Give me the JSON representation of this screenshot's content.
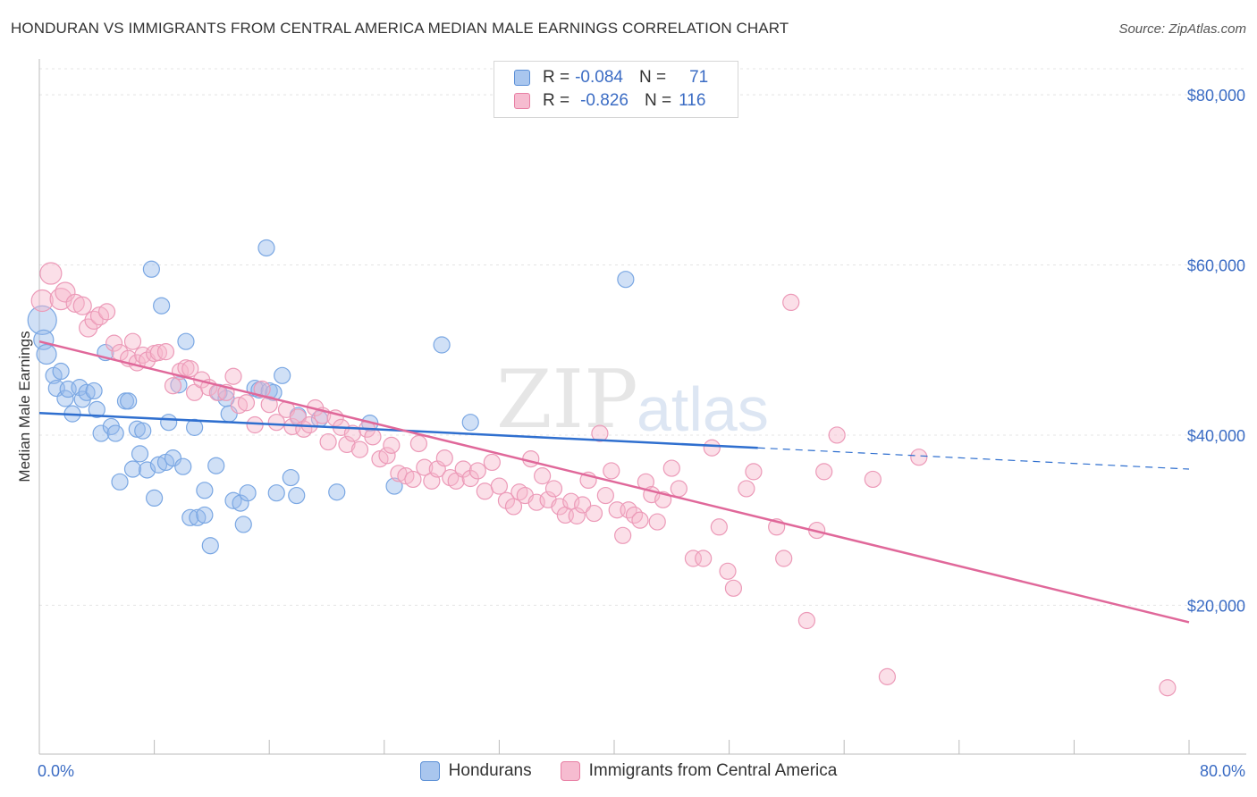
{
  "header": {
    "title": "HONDURAN VS IMMIGRANTS FROM CENTRAL AMERICA MEDIAN MALE EARNINGS CORRELATION CHART",
    "source_label": "Source: ZipAtlas.com"
  },
  "watermark": {
    "zip": "ZIP",
    "atlas": "atlas"
  },
  "legend": {
    "rows": [
      {
        "r_label": "R =",
        "r_value": "-0.084",
        "n_label": "N =",
        "n_value": "71",
        "color": "#a9c6ee",
        "border": "#5b8fd6"
      },
      {
        "r_label": "R =",
        "r_value": "-0.826",
        "n_label": "N =",
        "n_value": "116",
        "color": "#f6bcd0",
        "border": "#e87fa4"
      }
    ]
  },
  "bottom_legend": [
    {
      "label": "Hondurans",
      "color": "#a9c6ee",
      "border": "#5b8fd6"
    },
    {
      "label": "Immigrants from Central America",
      "color": "#f6bcd0",
      "border": "#e87fa4"
    }
  ],
  "chart_data": {
    "type": "scatter",
    "ylabel": "Median Male Earnings",
    "xlim": [
      0,
      80
    ],
    "ylim": [
      2500,
      84000
    ],
    "x_tick_labels": [
      "0.0%",
      "80.0%"
    ],
    "y_ticks": [
      {
        "value": 20000,
        "label": "$20,000"
      },
      {
        "value": 40000,
        "label": "$40,000"
      },
      {
        "value": 60000,
        "label": "$60,000"
      },
      {
        "value": 80000,
        "label": "$80,000"
      }
    ],
    "grid": true,
    "series": [
      {
        "name": "Hondurans",
        "color": "#7aa7e3",
        "fill": "rgba(150,186,236,0.45)",
        "line_color": "#2f6fcf",
        "trend": {
          "x0": 0,
          "y0": 42600,
          "x1": 50,
          "y1": 38500,
          "dash_x1": 80,
          "dash_y1": 36000
        },
        "points": [
          [
            0.2,
            53500,
            16
          ],
          [
            0.3,
            51200,
            11
          ],
          [
            0.5,
            49500,
            11
          ],
          [
            1.0,
            47000,
            9
          ],
          [
            1.2,
            45500,
            9
          ],
          [
            1.5,
            47500,
            9
          ],
          [
            1.8,
            44300,
            9
          ],
          [
            2.0,
            45400,
            9
          ],
          [
            2.3,
            42500,
            9
          ],
          [
            2.8,
            45600,
            9
          ],
          [
            3.0,
            44200,
            9
          ],
          [
            3.3,
            45000,
            9
          ],
          [
            3.8,
            45200,
            9
          ],
          [
            4.0,
            43000,
            9
          ],
          [
            4.3,
            40200,
            9
          ],
          [
            4.6,
            49700,
            9
          ],
          [
            5.0,
            41000,
            9
          ],
          [
            5.3,
            40200,
            9
          ],
          [
            5.6,
            34500,
            9
          ],
          [
            6.0,
            44000,
            9
          ],
          [
            6.2,
            44000,
            9
          ],
          [
            6.5,
            36000,
            9
          ],
          [
            6.8,
            40700,
            9
          ],
          [
            7.0,
            37800,
            9
          ],
          [
            7.2,
            40500,
            9
          ],
          [
            7.5,
            35900,
            9
          ],
          [
            7.8,
            59500,
            9
          ],
          [
            8.0,
            32600,
            9
          ],
          [
            8.3,
            36500,
            9
          ],
          [
            8.5,
            55200,
            9
          ],
          [
            8.8,
            36800,
            9
          ],
          [
            9.0,
            41500,
            9
          ],
          [
            9.3,
            37300,
            9
          ],
          [
            9.7,
            45900,
            9
          ],
          [
            10.0,
            36300,
            9
          ],
          [
            10.2,
            51000,
            9
          ],
          [
            10.5,
            30300,
            9
          ],
          [
            10.8,
            40900,
            9
          ],
          [
            11.0,
            30300,
            9
          ],
          [
            11.5,
            33500,
            9
          ],
          [
            11.5,
            30600,
            9
          ],
          [
            11.9,
            27000,
            9
          ],
          [
            12.3,
            36400,
            9
          ],
          [
            12.5,
            45000,
            9
          ],
          [
            13.0,
            44300,
            9
          ],
          [
            13.2,
            42500,
            9
          ],
          [
            13.5,
            32300,
            9
          ],
          [
            14.0,
            32000,
            9
          ],
          [
            14.2,
            29500,
            9
          ],
          [
            14.5,
            33200,
            9
          ],
          [
            15.0,
            45500,
            9
          ],
          [
            15.3,
            45300,
            9
          ],
          [
            15.8,
            62000,
            9
          ],
          [
            16.0,
            45200,
            9
          ],
          [
            16.3,
            45000,
            9
          ],
          [
            16.5,
            33200,
            9
          ],
          [
            16.9,
            47000,
            9
          ],
          [
            17.5,
            35000,
            9
          ],
          [
            17.9,
            32900,
            9
          ],
          [
            18.0,
            42300,
            9
          ],
          [
            19.5,
            41900,
            9
          ],
          [
            20.7,
            33300,
            9
          ],
          [
            23.0,
            41400,
            9
          ],
          [
            24.7,
            34000,
            9
          ],
          [
            28.0,
            50600,
            9
          ],
          [
            30.0,
            41500,
            9
          ],
          [
            40.8,
            58300,
            9
          ]
        ]
      },
      {
        "name": "Immigrants from Central America",
        "color": "#ec9ab8",
        "fill": "rgba(246,184,204,0.45)",
        "line_color": "#e0689a",
        "trend": {
          "x0": 0,
          "y0": 51000,
          "x1": 80,
          "y1": 18000
        },
        "points": [
          [
            0.2,
            55800,
            12
          ],
          [
            0.8,
            59000,
            12
          ],
          [
            1.5,
            56000,
            12
          ],
          [
            1.8,
            56800,
            11
          ],
          [
            2.5,
            55500,
            10
          ],
          [
            3.0,
            55200,
            10
          ],
          [
            3.4,
            52600,
            10
          ],
          [
            3.8,
            53500,
            10
          ],
          [
            4.2,
            54000,
            10
          ],
          [
            4.7,
            54500,
            9
          ],
          [
            5.2,
            50800,
            9
          ],
          [
            5.6,
            49700,
            9
          ],
          [
            6.2,
            49000,
            9
          ],
          [
            6.5,
            51000,
            9
          ],
          [
            6.8,
            48500,
            9
          ],
          [
            7.2,
            49400,
            9
          ],
          [
            7.5,
            48800,
            9
          ],
          [
            8.0,
            49600,
            9
          ],
          [
            8.3,
            49700,
            9
          ],
          [
            8.8,
            49800,
            9
          ],
          [
            9.3,
            45800,
            9
          ],
          [
            9.8,
            47500,
            9
          ],
          [
            10.2,
            47900,
            9
          ],
          [
            10.5,
            47800,
            9
          ],
          [
            10.8,
            45000,
            9
          ],
          [
            11.3,
            46500,
            9
          ],
          [
            11.8,
            45600,
            9
          ],
          [
            12.4,
            45000,
            9
          ],
          [
            13.0,
            45000,
            9
          ],
          [
            13.5,
            46900,
            9
          ],
          [
            13.9,
            43500,
            9
          ],
          [
            14.4,
            43800,
            9
          ],
          [
            15.0,
            41200,
            9
          ],
          [
            15.5,
            45400,
            9
          ],
          [
            16.0,
            43600,
            9
          ],
          [
            16.5,
            41500,
            9
          ],
          [
            17.2,
            43000,
            9
          ],
          [
            17.6,
            41000,
            9
          ],
          [
            18.0,
            42100,
            9
          ],
          [
            18.4,
            40700,
            9
          ],
          [
            18.8,
            41200,
            9
          ],
          [
            19.2,
            43200,
            9
          ],
          [
            19.7,
            42300,
            9
          ],
          [
            20.1,
            39200,
            9
          ],
          [
            20.6,
            42000,
            9
          ],
          [
            21.0,
            40900,
            9
          ],
          [
            21.4,
            38900,
            9
          ],
          [
            21.8,
            40200,
            9
          ],
          [
            22.3,
            38300,
            9
          ],
          [
            22.8,
            40700,
            9
          ],
          [
            23.2,
            39800,
            9
          ],
          [
            23.7,
            37200,
            9
          ],
          [
            24.2,
            37600,
            9
          ],
          [
            24.5,
            38800,
            9
          ],
          [
            25.0,
            35500,
            9
          ],
          [
            25.5,
            35200,
            9
          ],
          [
            26.0,
            34800,
            9
          ],
          [
            26.4,
            39000,
            9
          ],
          [
            26.8,
            36200,
            9
          ],
          [
            27.3,
            34600,
            9
          ],
          [
            27.7,
            36000,
            9
          ],
          [
            28.2,
            37300,
            9
          ],
          [
            28.6,
            35000,
            9
          ],
          [
            29.0,
            34600,
            9
          ],
          [
            29.5,
            36000,
            9
          ],
          [
            30.0,
            34900,
            9
          ],
          [
            30.5,
            35800,
            9
          ],
          [
            31.0,
            33400,
            9
          ],
          [
            31.5,
            36800,
            9
          ],
          [
            32.0,
            34000,
            9
          ],
          [
            32.5,
            32300,
            9
          ],
          [
            33.0,
            31600,
            9
          ],
          [
            33.4,
            33300,
            9
          ],
          [
            33.8,
            32900,
            9
          ],
          [
            34.2,
            37200,
            9
          ],
          [
            34.6,
            32100,
            9
          ],
          [
            35.0,
            35200,
            9
          ],
          [
            35.4,
            32400,
            9
          ],
          [
            35.8,
            33700,
            9
          ],
          [
            36.2,
            31600,
            9
          ],
          [
            36.6,
            30600,
            9
          ],
          [
            37.0,
            32200,
            9
          ],
          [
            37.4,
            30500,
            9
          ],
          [
            37.8,
            31800,
            9
          ],
          [
            38.2,
            34700,
            9
          ],
          [
            38.6,
            30800,
            9
          ],
          [
            39.0,
            40200,
            9
          ],
          [
            39.4,
            32900,
            9
          ],
          [
            39.8,
            35800,
            9
          ],
          [
            40.2,
            31200,
            9
          ],
          [
            40.6,
            28200,
            9
          ],
          [
            41.0,
            31200,
            9
          ],
          [
            41.4,
            30600,
            9
          ],
          [
            41.8,
            30000,
            9
          ],
          [
            42.2,
            34500,
            9
          ],
          [
            42.6,
            33000,
            9
          ],
          [
            43.0,
            29800,
            9
          ],
          [
            43.4,
            32400,
            9
          ],
          [
            44.0,
            36100,
            9
          ],
          [
            44.5,
            33700,
            9
          ],
          [
            45.5,
            25500,
            9
          ],
          [
            46.2,
            25500,
            9
          ],
          [
            46.8,
            38500,
            9
          ],
          [
            47.3,
            29200,
            9
          ],
          [
            47.9,
            24000,
            9
          ],
          [
            48.3,
            22000,
            9
          ],
          [
            49.2,
            33700,
            9
          ],
          [
            49.7,
            35700,
            9
          ],
          [
            51.3,
            29200,
            9
          ],
          [
            51.8,
            25500,
            9
          ],
          [
            52.3,
            55600,
            9
          ],
          [
            53.4,
            18200,
            9
          ],
          [
            54.1,
            28800,
            9
          ],
          [
            54.6,
            35700,
            9
          ],
          [
            55.5,
            40000,
            9
          ],
          [
            58.0,
            34800,
            9
          ],
          [
            59.0,
            11600,
            9
          ],
          [
            61.2,
            37400,
            9
          ],
          [
            78.5,
            10300,
            9
          ]
        ]
      }
    ]
  }
}
